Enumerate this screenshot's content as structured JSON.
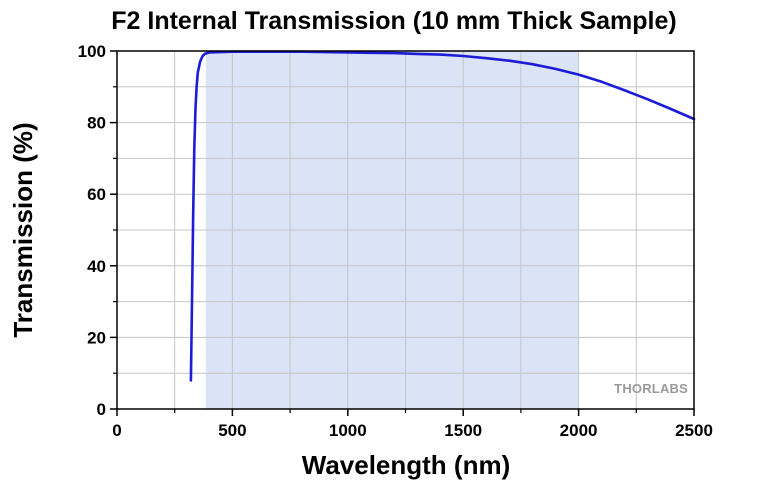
{
  "chart_data": {
    "type": "line",
    "title": "F2 Internal Transmission (10 mm Thick Sample)",
    "xlabel": "Wavelength (nm)",
    "ylabel": "Transmission (%)",
    "xlim": [
      0,
      2500
    ],
    "ylim": [
      0,
      100
    ],
    "x_ticks": [
      0,
      500,
      1000,
      1500,
      2000,
      2500
    ],
    "x_tick_labels": [
      "0",
      "500",
      "1000",
      "1500",
      "2000",
      "2500"
    ],
    "y_ticks": [
      0,
      20,
      40,
      60,
      80,
      100
    ],
    "y_tick_labels": [
      "0",
      "20",
      "40",
      "60",
      "80",
      "100"
    ],
    "grid": true,
    "highlight_band": {
      "x_start": 385,
      "x_end": 2000,
      "color": "#dbe3f6"
    },
    "series": [
      {
        "name": "F2 Internal Transmission",
        "color": "#1c1cd6",
        "x": [
          320,
          325,
          330,
          335,
          340,
          345,
          350,
          360,
          370,
          380,
          400,
          450,
          500,
          600,
          700,
          800,
          900,
          1000,
          1100,
          1200,
          1300,
          1400,
          1500,
          1600,
          1700,
          1800,
          1900,
          2000,
          2100,
          2200,
          2300,
          2400,
          2500
        ],
        "y": [
          8,
          30,
          55,
          73,
          84,
          90,
          94,
          97,
          98.5,
          99.2,
          99.6,
          99.7,
          99.8,
          99.8,
          99.8,
          99.8,
          99.7,
          99.6,
          99.5,
          99.4,
          99.2,
          99.0,
          98.6,
          98.0,
          97.3,
          96.3,
          95.0,
          93.4,
          91.4,
          89.0,
          86.5,
          83.8,
          81.0
        ]
      }
    ]
  },
  "branding": {
    "logo_text": "THORLABS"
  }
}
